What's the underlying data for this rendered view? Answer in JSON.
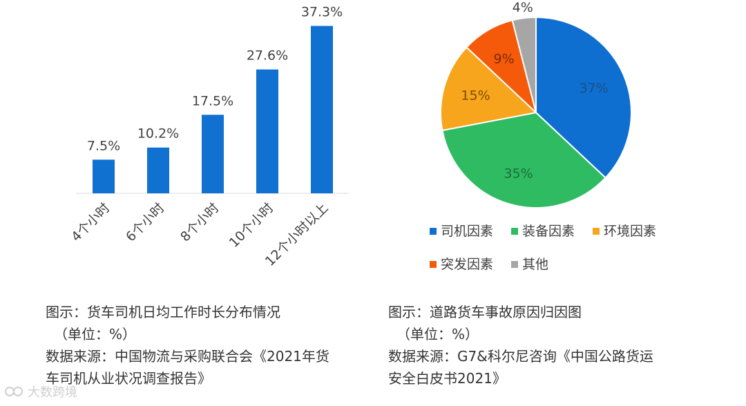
{
  "chart_data": [
    {
      "type": "bar",
      "categories": [
        "4个小时",
        "6个小时",
        "8个小时",
        "10个小时",
        "12个小时以上"
      ],
      "values": [
        7.5,
        10.2,
        17.5,
        27.6,
        37.3
      ],
      "data_labels": [
        "7.5%",
        "10.2%",
        "17.5%",
        "27.6%",
        "37.3%"
      ],
      "ylim": [
        0,
        40
      ],
      "grid": false,
      "bar_color": "#1071d1"
    },
    {
      "type": "pie",
      "categories": [
        "司机因素",
        "装备因素",
        "环境因素",
        "突发因素",
        "其他"
      ],
      "values": [
        37,
        35,
        15,
        9,
        4
      ],
      "data_labels": [
        "37%",
        "35%",
        "15%",
        "9%",
        "4%"
      ],
      "colors": [
        "#0e6fd0",
        "#2ebb62",
        "#f7a51c",
        "#f55a0a",
        "#a6a6a6"
      ],
      "legend_position": "bottom"
    }
  ],
  "caption_left": {
    "line1": "图示：货车司机日均工作时长分布情况",
    "line2": "（单位：%）",
    "line3": "数据来源：中国物流与采购联合会《2021年货",
    "line4": "车司机从业状况调查报告》"
  },
  "caption_right": {
    "line1": "图示：道路货车事故原因归因图",
    "line2": "（单位：%）",
    "line3": "数据来源：G7&科尔尼咨询《中国公路货运",
    "line4": "安全白皮书2021》"
  },
  "watermark": {
    "text": "大数跨境",
    "icon": "logo-icon"
  }
}
